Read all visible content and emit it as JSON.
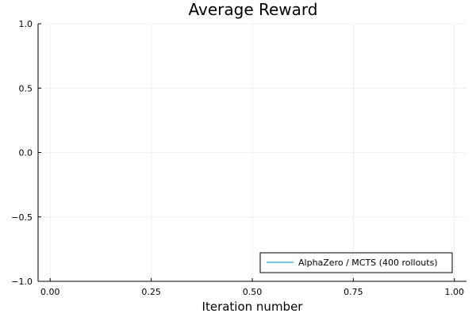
{
  "chart_data": {
    "type": "line",
    "title": "Average Reward",
    "xlabel": "Iteration number",
    "ylabel": "",
    "xlim": [
      -0.03,
      1.03
    ],
    "ylim": [
      -1.0,
      1.0
    ],
    "x_ticks": [
      0.0,
      0.25,
      0.5,
      0.75,
      1.0
    ],
    "x_tick_labels": [
      "0.00",
      "0.25",
      "0.50",
      "0.75",
      "1.00"
    ],
    "y_ticks": [
      -1.0,
      -0.5,
      0.0,
      0.5,
      1.0
    ],
    "y_tick_labels": [
      "−1.0",
      "−0.5",
      "0.0",
      "0.5",
      "1.0"
    ],
    "grid": true,
    "legend_position": "bottom-right",
    "series": [
      {
        "name": "AlphaZero / MCTS (400 rollouts)",
        "color": "#6fcbe6",
        "x": [],
        "y": []
      }
    ]
  }
}
